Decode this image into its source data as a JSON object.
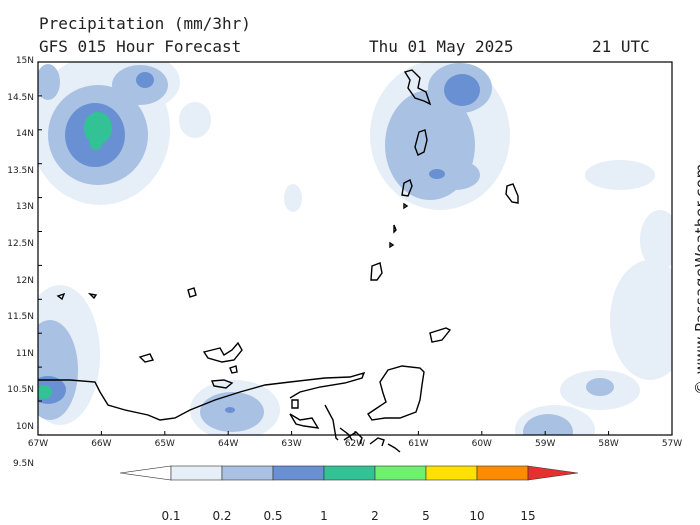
{
  "title": {
    "variable": "Precipitation (mm/3hr)",
    "model": "GFS 015 Hour Forecast",
    "date": "Thu 01 May 2025",
    "time": "21 UTC"
  },
  "credit": "© www.PassageWeather.com",
  "axes": {
    "lat_labels": [
      "15N",
      "14.5N",
      "14N",
      "13.5N",
      "13N",
      "12.5N",
      "12N",
      "11.5N",
      "11N",
      "10.5N",
      "10N",
      "9.5N"
    ],
    "lon_labels": [
      "67W",
      "66W",
      "65W",
      "64W",
      "63W",
      "62W",
      "61W",
      "60W",
      "59W",
      "58W",
      "57W"
    ]
  },
  "legend": {
    "values": [
      "0.1",
      "0.2",
      "0.5",
      "1",
      "2",
      "5",
      "10",
      "15"
    ],
    "colors": [
      "#ffffff",
      "#e6eef8",
      "#a9c1e2",
      "#6a90d4",
      "#33c295",
      "#6cf26c",
      "#ffe000",
      "#ff8c00",
      "#e63030"
    ]
  }
}
